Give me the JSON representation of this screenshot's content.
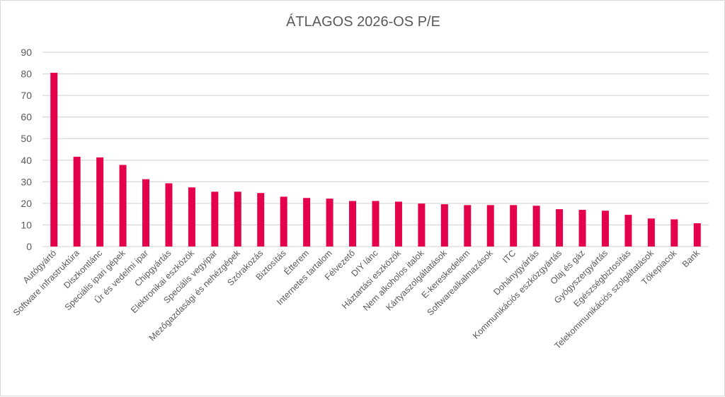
{
  "chart_data": {
    "type": "bar",
    "title": "ÁTLAGOS 2026-OS P/E",
    "xlabel": "",
    "ylabel": "",
    "ylim": [
      0,
      90
    ],
    "yticks": [
      0,
      10,
      20,
      30,
      40,
      50,
      60,
      70,
      80,
      90
    ],
    "grid": true,
    "bar_color": "#E4004B",
    "categories": [
      "Autógyártó",
      "Software infrastruktúra",
      "Diszkontlánc",
      "Speciális ipari gépek",
      "Űr és vedelmi ipar",
      "Chipgyártás",
      "Elektronikai eszközök",
      "Speciális vegyipar",
      "Mezőgazdasági és nehézgépek",
      "Szórakozás",
      "Biztosítás",
      "Étterem",
      "Internetes tartalom",
      "Félvezető",
      "DIY lánc",
      "Háztartási eszközök",
      "Nem alkoholos italok",
      "Kártyaszolgáltatások",
      "E-kereskedelem",
      "Softwarealkalmazások",
      "ITC",
      "Dohánygyártás",
      "Kommunikációs eszközgyártás",
      "Olaj és gáz",
      "Gyógyszergyártás",
      "Egészségbiztosítás",
      "Telekommunikációs szolgáltatások",
      "Tőkepiacok",
      "Bank"
    ],
    "values": [
      80.5,
      41.6,
      41.3,
      37.8,
      31.2,
      29.3,
      27.4,
      25.4,
      25.4,
      24.8,
      23.1,
      22.5,
      22.2,
      21.1,
      21.1,
      20.8,
      19.9,
      19.6,
      19.2,
      19.2,
      19.2,
      18.9,
      17.3,
      17.0,
      16.6,
      14.7,
      13.0,
      12.6,
      10.8
    ]
  }
}
